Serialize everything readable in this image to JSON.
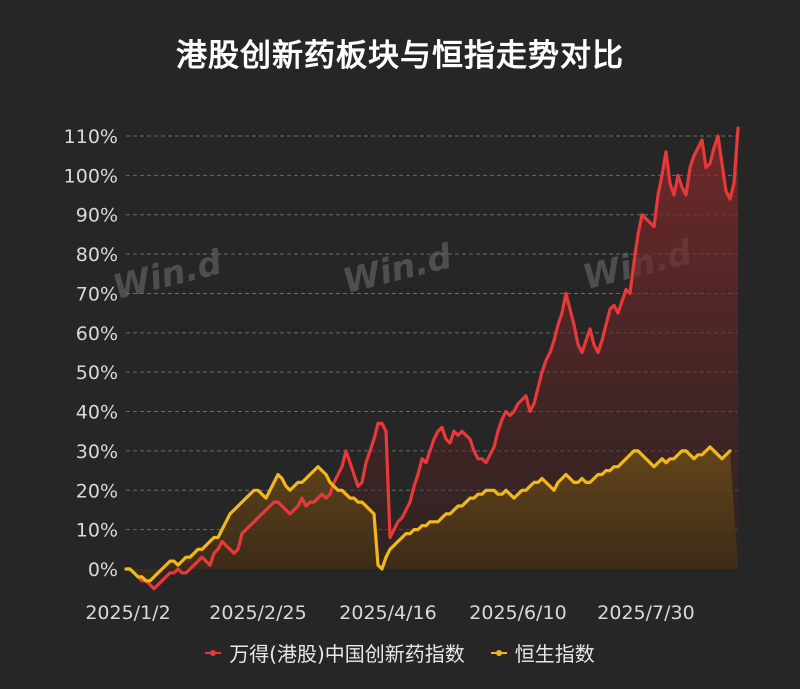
{
  "chart_data": {
    "type": "line",
    "title": "港股创新药板块与恒指走势对比",
    "xlabel": "",
    "ylabel": "",
    "x_ticks": [
      "2025/1/2",
      "2025/2/25",
      "2025/4/16",
      "2025/6/10",
      "2025/7/30"
    ],
    "y_ticks": [
      "0%",
      "10%",
      "20%",
      "30%",
      "40%",
      "50%",
      "60%",
      "70%",
      "80%",
      "90%",
      "100%",
      "110%"
    ],
    "ylim": [
      0,
      110
    ],
    "grid": true,
    "legend": "bottom",
    "watermark": [
      "Win.d",
      "Win.d",
      "Win.d"
    ],
    "series": [
      {
        "name": "万得(港股)中国创新药指数",
        "color": "#e8383a",
        "values": [
          0,
          0,
          -1,
          -2,
          -3,
          -3,
          -4,
          -5,
          -4,
          -3,
          -2,
          -1,
          -1,
          0,
          -1,
          -1,
          0,
          1,
          2,
          3,
          2,
          1,
          4,
          5,
          7,
          6,
          5,
          4,
          5,
          9,
          10,
          11,
          12,
          13,
          14,
          15,
          16,
          17,
          17,
          16,
          15,
          14,
          15,
          16,
          18,
          16,
          17,
          17,
          18,
          19,
          18,
          19,
          22,
          24,
          26,
          30,
          27,
          24,
          21,
          22,
          27,
          30,
          33,
          37,
          37,
          35,
          8,
          10,
          12,
          13,
          15,
          17,
          21,
          24,
          28,
          27,
          30,
          33,
          35,
          36,
          33,
          32,
          35,
          34,
          35,
          34,
          33,
          30,
          28,
          28,
          27,
          29,
          31,
          35,
          38,
          40,
          39,
          40,
          42,
          43,
          44,
          40,
          42,
          46,
          50,
          53,
          55,
          58,
          62,
          65,
          70,
          66,
          62,
          57,
          55,
          58,
          61,
          57,
          55,
          58,
          62,
          66,
          67,
          65,
          68,
          71,
          70,
          78,
          85,
          90,
          89,
          88,
          87,
          95,
          100,
          106,
          98,
          95,
          100,
          97,
          95,
          102,
          105,
          107,
          109,
          102,
          103,
          107,
          110,
          103,
          96,
          94,
          98,
          112
        ]
      },
      {
        "name": "恒生指数",
        "color": "#f2b818",
        "values": [
          0,
          0,
          -1,
          -2,
          -2,
          -3,
          -3,
          -2,
          -1,
          0,
          1,
          2,
          2,
          1,
          2,
          3,
          3,
          4,
          5,
          5,
          6,
          7,
          8,
          8,
          10,
          12,
          14,
          15,
          16,
          17,
          18,
          19,
          20,
          20,
          19,
          18,
          20,
          22,
          24,
          23,
          21,
          20,
          21,
          22,
          22,
          23,
          24,
          25,
          26,
          25,
          24,
          22,
          21,
          20,
          20,
          19,
          18,
          18,
          17,
          17,
          16,
          15,
          14,
          1,
          0,
          3,
          5,
          6,
          7,
          8,
          9,
          9,
          10,
          10,
          11,
          11,
          12,
          12,
          12,
          13,
          14,
          14,
          15,
          16,
          16,
          17,
          18,
          18,
          19,
          19,
          20,
          20,
          20,
          19,
          19,
          20,
          19,
          18,
          19,
          20,
          20,
          21,
          22,
          22,
          23,
          22,
          21,
          20,
          22,
          23,
          24,
          23,
          22,
          22,
          23,
          22,
          22,
          23,
          24,
          24,
          25,
          25,
          26,
          26,
          27,
          28,
          29,
          30,
          30,
          29,
          28,
          27,
          26,
          27,
          28,
          27,
          28,
          28,
          29,
          30,
          30,
          29,
          28,
          29,
          29,
          30,
          31,
          30,
          29,
          28,
          29,
          30
        ]
      }
    ]
  }
}
